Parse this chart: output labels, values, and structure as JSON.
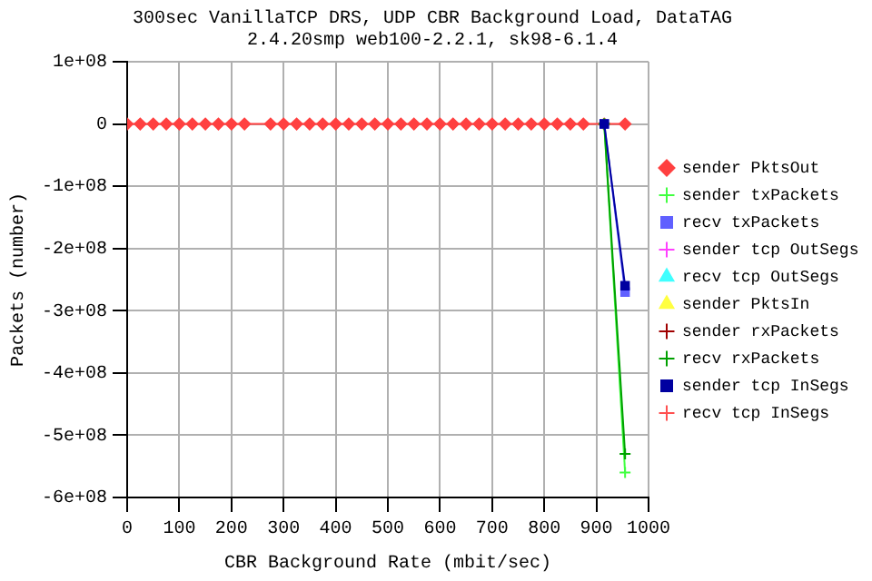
{
  "chart_data": {
    "type": "line",
    "title": "300sec VanillaTCP DRS, UDP CBR Background Load, DataTAG",
    "subtitle": "2.4.20smp web100-2.2.1, sk98-6.1.4",
    "xlabel": "CBR Background Rate (mbit/sec)",
    "ylabel": "Packets (number)",
    "x": [
      0,
      25,
      50,
      75,
      100,
      125,
      150,
      175,
      200,
      225,
      275,
      300,
      325,
      350,
      375,
      400,
      425,
      450,
      475,
      500,
      525,
      550,
      575,
      600,
      625,
      650,
      675,
      700,
      725,
      750,
      775,
      800,
      825,
      850,
      875,
      915,
      955
    ],
    "xlim": [
      0,
      1000
    ],
    "xticks": [
      0,
      100,
      200,
      300,
      400,
      500,
      600,
      700,
      800,
      900,
      1000
    ],
    "ylim": [
      -600000000,
      100000000
    ],
    "yticks": [
      {
        "value": -600000000,
        "label": "-6e+08"
      },
      {
        "value": -500000000,
        "label": "-5e+08"
      },
      {
        "value": -400000000,
        "label": "-4e+08"
      },
      {
        "value": -300000000,
        "label": "-3e+08"
      },
      {
        "value": -200000000,
        "label": "-2e+08"
      },
      {
        "value": -100000000,
        "label": "-1e+08"
      },
      {
        "value": 0,
        "label": "0"
      },
      {
        "value": 100000000,
        "label": "1e+08"
      }
    ],
    "grid": true,
    "legend": "right",
    "series": [
      {
        "name": "sender PktsOut",
        "color": "#ff4040",
        "marker": "diamond",
        "values": [
          0,
          0,
          0,
          0,
          0,
          0,
          0,
          0,
          0,
          0,
          0,
          0,
          0,
          0,
          0,
          0,
          0,
          0,
          0,
          0,
          0,
          0,
          0,
          0,
          0,
          0,
          0,
          0,
          0,
          0,
          0,
          0,
          0,
          0,
          0,
          0,
          0
        ]
      },
      {
        "name": "sender txPackets",
        "color": "#40ff40",
        "marker": "cross",
        "values": [
          null,
          null,
          null,
          null,
          null,
          null,
          null,
          null,
          null,
          null,
          null,
          null,
          null,
          null,
          null,
          null,
          null,
          null,
          null,
          null,
          null,
          null,
          null,
          null,
          null,
          null,
          null,
          null,
          null,
          null,
          null,
          null,
          null,
          null,
          null,
          0,
          -560000000
        ]
      },
      {
        "name": "recv txPackets",
        "color": "#6060ff",
        "marker": "square",
        "values": [
          null,
          null,
          null,
          null,
          null,
          null,
          null,
          null,
          null,
          null,
          null,
          null,
          null,
          null,
          null,
          null,
          null,
          null,
          null,
          null,
          null,
          null,
          null,
          null,
          null,
          null,
          null,
          null,
          null,
          null,
          null,
          null,
          null,
          null,
          null,
          0,
          -270000000
        ]
      },
      {
        "name": "sender tcp OutSegs",
        "color": "#ff40ff",
        "marker": "cross",
        "values": [
          null,
          null,
          null,
          null,
          null,
          null,
          null,
          null,
          null,
          null,
          null,
          null,
          null,
          null,
          null,
          null,
          null,
          null,
          null,
          null,
          null,
          null,
          null,
          null,
          null,
          null,
          null,
          null,
          null,
          null,
          null,
          null,
          null,
          null,
          null,
          null,
          null
        ]
      },
      {
        "name": "recv tcp OutSegs",
        "color": "#40ffff",
        "marker": "triangle",
        "values": [
          null,
          null,
          null,
          null,
          null,
          null,
          null,
          null,
          null,
          null,
          null,
          null,
          null,
          null,
          null,
          null,
          null,
          null,
          null,
          null,
          null,
          null,
          null,
          null,
          null,
          null,
          null,
          null,
          null,
          null,
          null,
          null,
          null,
          null,
          null,
          null,
          null
        ]
      },
      {
        "name": "sender PktsIn",
        "color": "#ffff40",
        "marker": "triangle",
        "values": [
          null,
          null,
          null,
          null,
          null,
          null,
          null,
          null,
          null,
          null,
          null,
          null,
          null,
          null,
          null,
          null,
          null,
          null,
          null,
          null,
          null,
          null,
          null,
          null,
          null,
          null,
          null,
          null,
          null,
          null,
          null,
          null,
          null,
          null,
          null,
          null,
          null
        ]
      },
      {
        "name": "sender rxPackets",
        "color": "#a00000",
        "marker": "cross",
        "values": [
          null,
          null,
          null,
          null,
          null,
          null,
          null,
          null,
          null,
          null,
          null,
          null,
          null,
          null,
          null,
          null,
          null,
          null,
          null,
          null,
          null,
          null,
          null,
          null,
          null,
          null,
          null,
          null,
          null,
          null,
          null,
          null,
          null,
          null,
          null,
          null,
          null
        ]
      },
      {
        "name": "recv rxPackets",
        "color": "#00a000",
        "marker": "cross",
        "values": [
          null,
          null,
          null,
          null,
          null,
          null,
          null,
          null,
          null,
          null,
          null,
          null,
          null,
          null,
          null,
          null,
          null,
          null,
          null,
          null,
          null,
          null,
          null,
          null,
          null,
          null,
          null,
          null,
          null,
          null,
          null,
          null,
          null,
          null,
          null,
          0,
          -530000000
        ]
      },
      {
        "name": "sender tcp InSegs",
        "color": "#0000a0",
        "marker": "square",
        "values": [
          null,
          null,
          null,
          null,
          null,
          null,
          null,
          null,
          null,
          null,
          null,
          null,
          null,
          null,
          null,
          null,
          null,
          null,
          null,
          null,
          null,
          null,
          null,
          null,
          null,
          null,
          null,
          null,
          null,
          null,
          null,
          null,
          null,
          null,
          null,
          0,
          -260000000
        ]
      },
      {
        "name": "recv tcp InSegs",
        "color": "#ff5050",
        "marker": "cross",
        "values": [
          null,
          null,
          null,
          null,
          null,
          null,
          null,
          null,
          null,
          null,
          null,
          null,
          null,
          null,
          null,
          null,
          null,
          null,
          null,
          null,
          null,
          null,
          null,
          null,
          null,
          null,
          null,
          null,
          null,
          null,
          null,
          null,
          null,
          null,
          null,
          null,
          null
        ]
      }
    ]
  }
}
